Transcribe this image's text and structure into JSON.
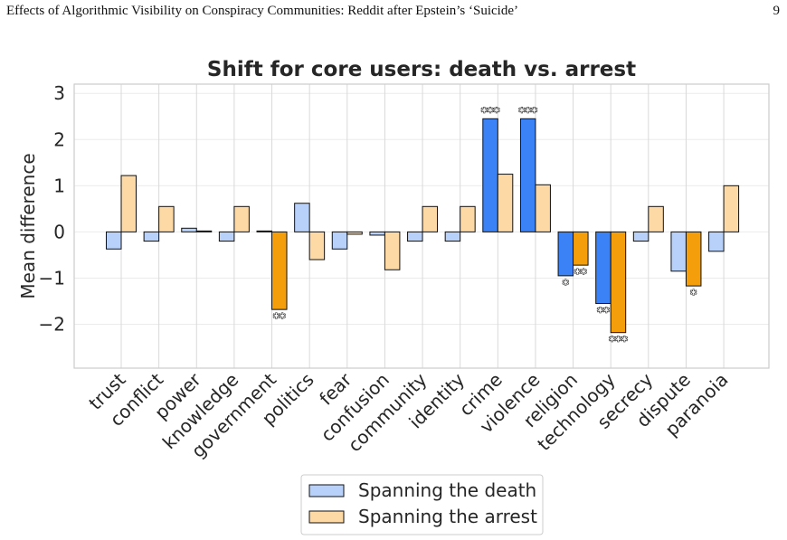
{
  "page": {
    "running_head": "Effects of Algorithmic Visibility on Conspiracy Communities: Reddit after Epstein’s ‘Suicide’",
    "page_number": "9"
  },
  "chart_data": {
    "type": "bar",
    "title": "Shift for core users: death vs. arrest",
    "xlabel": "",
    "ylabel": "Mean difference",
    "ylim": [
      -2.95,
      3.2
    ],
    "yticks": [
      -2,
      -1,
      0,
      1,
      2,
      3
    ],
    "yticklabels": [
      "−2",
      "−1",
      "0",
      "1",
      "2",
      "3"
    ],
    "grid": true,
    "legend_position": "bottom-center",
    "categories": [
      "trust",
      "conflict",
      "power",
      "knowledge",
      "government",
      "politics",
      "fear",
      "confusion",
      "community",
      "identity",
      "crime",
      "violence",
      "religion",
      "technology",
      "secrecy",
      "dispute",
      "paranoia"
    ],
    "series": [
      {
        "name": "Spanning the death",
        "light_color": "#b8d1fb",
        "sig_color": "#3b82f6",
        "values": [
          -0.37,
          -0.2,
          0.08,
          -0.2,
          0.02,
          0.62,
          -0.37,
          -0.07,
          -0.2,
          -0.2,
          2.45,
          2.45,
          -0.95,
          -1.55,
          -0.2,
          -0.85,
          -0.42
        ],
        "significance": [
          "",
          "",
          "",
          "",
          "",
          "",
          "",
          "",
          "",
          "",
          "***",
          "***",
          "*",
          "**",
          "",
          "",
          ""
        ]
      },
      {
        "name": "Spanning the arrest",
        "light_color": "#fcd9a5",
        "sig_color": "#f59e0b",
        "values": [
          1.22,
          0.55,
          0.02,
          0.55,
          -1.68,
          -0.6,
          -0.05,
          -0.82,
          0.55,
          0.55,
          1.25,
          1.02,
          -0.72,
          -2.18,
          0.55,
          -1.17,
          1.0
        ],
        "significance": [
          "",
          "",
          "",
          "",
          "**",
          "",
          "",
          "",
          "",
          "",
          "",
          "",
          "**",
          "***",
          "",
          "*",
          ""
        ]
      }
    ]
  }
}
